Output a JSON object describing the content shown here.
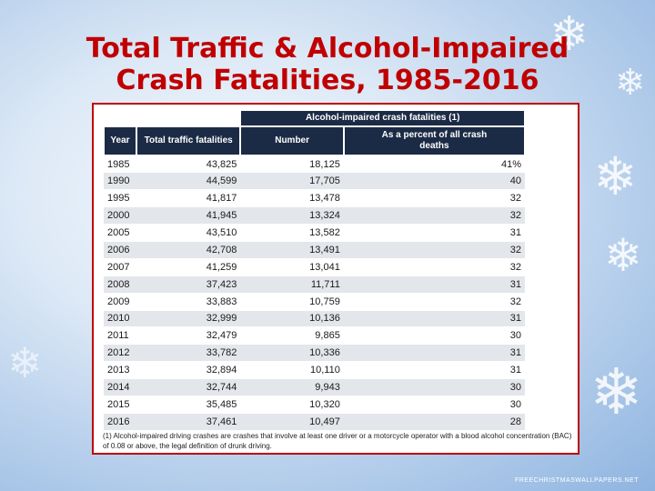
{
  "title": {
    "line1": "Total Traffic & Alcohol-Impaired",
    "line2": "Crash Fatalities, 1985-2016"
  },
  "table": {
    "group_header": "Alcohol-impaired crash fatalities (1)",
    "columns": [
      "Year",
      "Total traffic fatalities",
      "Number",
      "As a percent of all crash deaths"
    ],
    "rows": [
      [
        "1985",
        "43,825",
        "18,125",
        "41%"
      ],
      [
        "1990",
        "44,599",
        "17,705",
        "40"
      ],
      [
        "1995",
        "41,817",
        "13,478",
        "32"
      ],
      [
        "2000",
        "41,945",
        "13,324",
        "32"
      ],
      [
        "2005",
        "43,510",
        "13,582",
        "31"
      ],
      [
        "2006",
        "42,708",
        "13,491",
        "32"
      ],
      [
        "2007",
        "41,259",
        "13,041",
        "32"
      ],
      [
        "2008",
        "37,423",
        "11,711",
        "31"
      ],
      [
        "2009",
        "33,883",
        "10,759",
        "32"
      ],
      [
        "2010",
        "32,999",
        "10,136",
        "31"
      ],
      [
        "2011",
        "32,479",
        "9,865",
        "30"
      ],
      [
        "2012",
        "33,782",
        "10,336",
        "31"
      ],
      [
        "2013",
        "32,894",
        "10,110",
        "31"
      ],
      [
        "2014",
        "32,744",
        "9,943",
        "30"
      ],
      [
        "2015",
        "35,485",
        "10,320",
        "30"
      ],
      [
        "2016",
        "37,461",
        "10,497",
        "28"
      ]
    ]
  },
  "footnote": "(1) Alcohol-impaired driving crashes are crashes that involve at least one driver or a motorcycle operator with a blood alcohol concentration (BAC) of 0.08 or above, the legal definition of drunk driving.",
  "credit": "FREECHRISTMASWALLPAPERS.NET",
  "icons": [
    "snowflake-icon"
  ],
  "colors": {
    "title": "#c00000",
    "header_bg": "#1c2b45",
    "frame_border": "#c00000",
    "row_alt": "#e3e6ea"
  }
}
